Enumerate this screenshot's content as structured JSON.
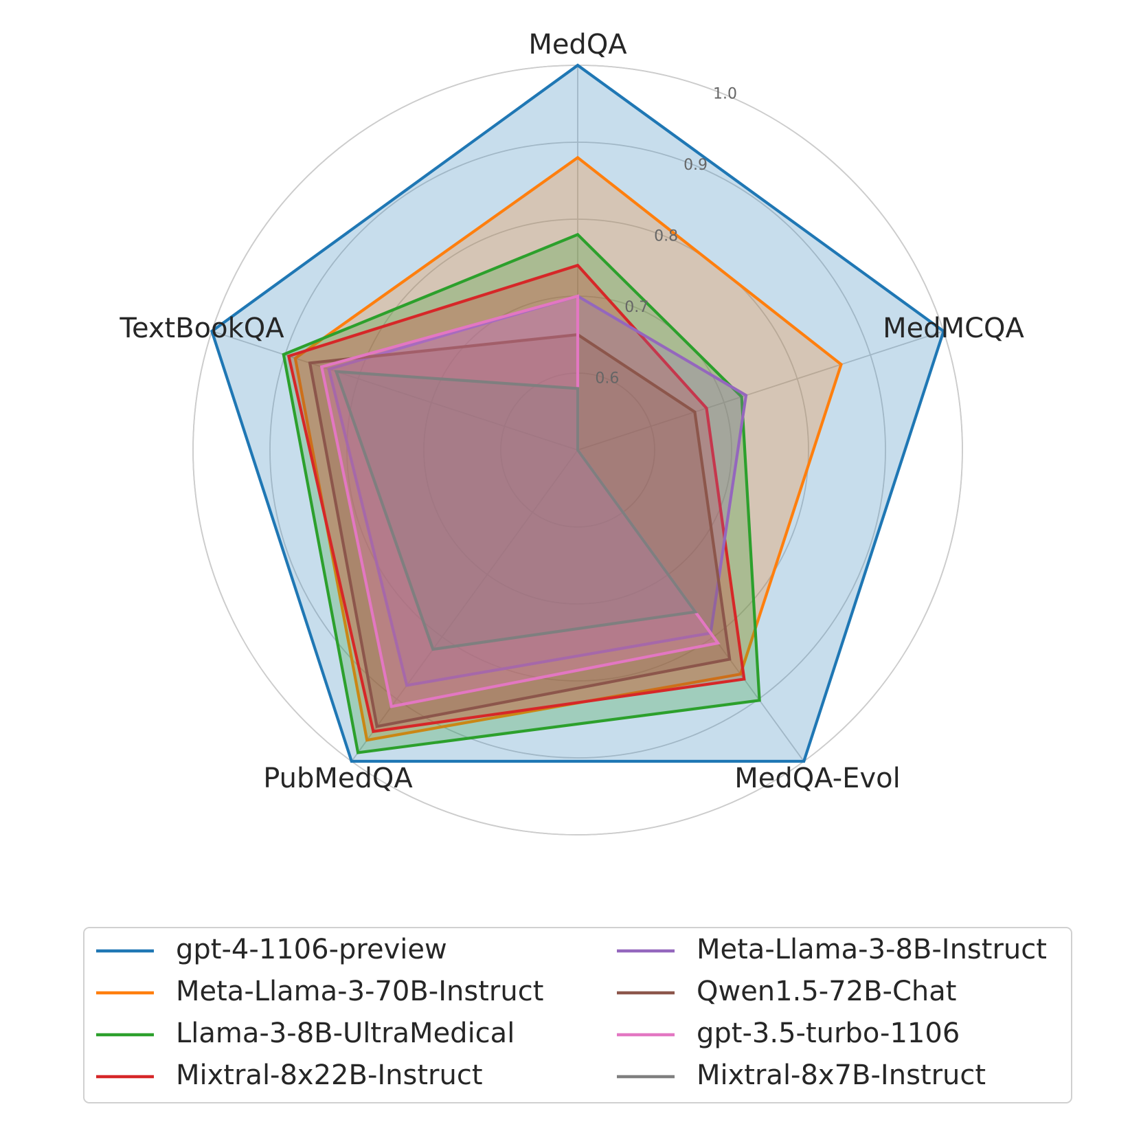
{
  "chart_data": {
    "type": "radar",
    "axes": [
      "MedQA",
      "MedMCQA",
      "MedQA-Evol",
      "PubMedQA",
      "TextBookQA"
    ],
    "r_range": [
      0.5,
      1.0
    ],
    "r_ticks": [
      "0.6",
      "0.7",
      "0.8",
      "0.9",
      "1.0"
    ],
    "r_tick_values": [
      0.6,
      0.7,
      0.8,
      0.9,
      1.0
    ],
    "grid": true,
    "legend_position": "bottom",
    "series": [
      {
        "name": "gpt-4-1106-preview",
        "color": "#1f77b4",
        "values": [
          1.0,
          1.0,
          1.0,
          1.0,
          1.0
        ]
      },
      {
        "name": "Meta-Llama-3-70B-Instruct",
        "color": "#ff7f0e",
        "values": [
          0.88,
          0.86,
          0.86,
          0.966,
          0.886
        ]
      },
      {
        "name": "Llama-3-8B-UltraMedical",
        "color": "#2ca02c",
        "values": [
          0.78,
          0.724,
          0.902,
          0.986,
          0.902
        ]
      },
      {
        "name": "Mixtral-8x22B-Instruct",
        "color": "#d62728",
        "values": [
          0.74,
          0.676,
          0.868,
          0.952,
          0.895
        ]
      },
      {
        "name": "Meta-Llama-3-8B-Instruct",
        "color": "#9467bd",
        "values": [
          0.7,
          0.73,
          0.794,
          0.878,
          0.84
        ]
      },
      {
        "name": "Qwen1.5-72B-Chat",
        "color": "#8c564b",
        "values": [
          0.65,
          0.66,
          0.836,
          0.944,
          0.866
        ]
      },
      {
        "name": "gpt-3.5-turbo-1106",
        "color": "#e377c2",
        "values": [
          0.7,
          0.5,
          0.81,
          0.912,
          0.85
        ]
      },
      {
        "name": "Mixtral-8x7B-Instruct",
        "color": "#7f7f7f",
        "values": [
          0.58,
          0.5,
          0.76,
          0.82,
          0.83
        ]
      }
    ]
  }
}
